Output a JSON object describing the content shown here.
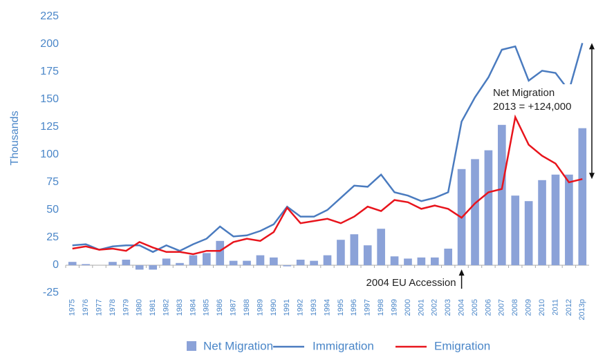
{
  "chart_data": {
    "type": "bar",
    "y_label": "Thousands",
    "categories": [
      "1975",
      "1976",
      "1977",
      "1978",
      "1979",
      "1980",
      "1981",
      "1982",
      "1983",
      "1984",
      "1985",
      "1986",
      "1987",
      "1988",
      "1989",
      "1990",
      "1991",
      "1992",
      "1993",
      "1994",
      "1995",
      "1996",
      "1997",
      "1998",
      "1999",
      "2000",
      "2001",
      "2002",
      "2003",
      "2004",
      "2005",
      "2006",
      "2007",
      "2008",
      "2009",
      "2010",
      "2011",
      "2012",
      "2013p"
    ],
    "series": [
      {
        "name": "Net Migration",
        "type": "bar",
        "color": "#8ba2d8",
        "values": [
          3,
          1,
          0,
          3,
          5,
          -4,
          -4,
          6,
          2,
          9,
          11,
          22,
          4,
          4,
          9,
          7,
          -1,
          5,
          4,
          9,
          23,
          28,
          18,
          33,
          8,
          6,
          7,
          7,
          15,
          87,
          96,
          104,
          127,
          63,
          58,
          77,
          82,
          82,
          124
        ]
      },
      {
        "name": "Immigration",
        "type": "line",
        "color": "#4a7bbf",
        "values": [
          18,
          19,
          14,
          17,
          18,
          18,
          12,
          18,
          13,
          19,
          24,
          35,
          26,
          27,
          31,
          37,
          53,
          44,
          44,
          50,
          61,
          72,
          71,
          82,
          66,
          63,
          58,
          61,
          66,
          130,
          152,
          170,
          195,
          198,
          167,
          176,
          174,
          158,
          201
        ]
      },
      {
        "name": "Emigration",
        "type": "line",
        "color": "#e8141c",
        "values": [
          15,
          17,
          14,
          15,
          13,
          21,
          16,
          12,
          12,
          10,
          13,
          13,
          21,
          24,
          22,
          30,
          52,
          38,
          40,
          42,
          38,
          44,
          53,
          49,
          59,
          57,
          51,
          54,
          51,
          43,
          56,
          66,
          69,
          134,
          109,
          99,
          92,
          75,
          78
        ]
      }
    ],
    "ylim": [
      -25,
      225
    ],
    "yticks": [
      -25,
      0,
      25,
      50,
      75,
      100,
      125,
      150,
      175,
      200,
      225
    ],
    "grid": false,
    "annotations": [
      "Net Migration",
      "2013 = +124,000",
      "2004 EU Accession"
    ]
  }
}
